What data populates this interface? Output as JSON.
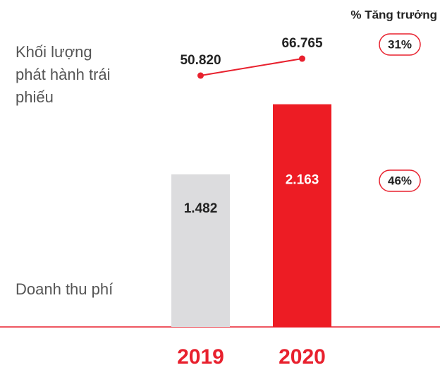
{
  "chart_data": {
    "type": "combo",
    "growth_title": "% Tăng trưởng",
    "categories": [
      "2019",
      "2020"
    ],
    "series": [
      {
        "name": "Khối lượng phát hành trái phiếu",
        "type": "line",
        "color": "#e8212e",
        "values": [
          50820,
          66765
        ],
        "value_labels": [
          "50.820",
          "66.765"
        ],
        "growth": 31,
        "growth_label": "31%"
      },
      {
        "name": "Doanh thu phí",
        "type": "bar",
        "colors": [
          "#dcdcde",
          "#ed1c24"
        ],
        "values": [
          1482,
          2163
        ],
        "value_labels": [
          "1.482",
          "2.163"
        ],
        "growth": 46,
        "growth_label": "46%"
      }
    ]
  }
}
